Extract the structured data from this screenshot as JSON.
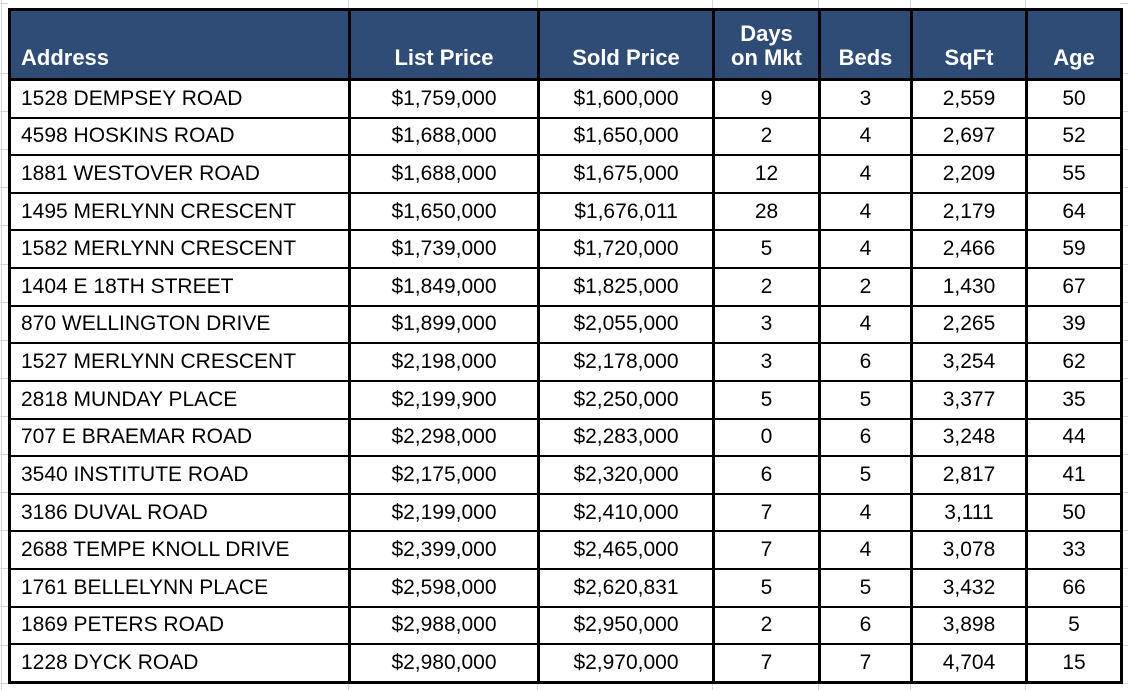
{
  "table": {
    "columns": [
      {
        "label": "Address",
        "align": "left"
      },
      {
        "label": "List Price",
        "align": "center"
      },
      {
        "label": "Sold Price",
        "align": "center"
      },
      {
        "label": "Days\non Mkt",
        "align": "center"
      },
      {
        "label": "Beds",
        "align": "center"
      },
      {
        "label": "SqFt",
        "align": "center"
      },
      {
        "label": "Age",
        "align": "center"
      }
    ],
    "rows": [
      [
        "1528 DEMPSEY ROAD",
        "$1,759,000",
        "$1,600,000",
        "9",
        "3",
        "2,559",
        "50"
      ],
      [
        "4598 HOSKINS ROAD",
        "$1,688,000",
        "$1,650,000",
        "2",
        "4",
        "2,697",
        "52"
      ],
      [
        "1881 WESTOVER ROAD",
        "$1,688,000",
        "$1,675,000",
        "12",
        "4",
        "2,209",
        "55"
      ],
      [
        "1495 MERLYNN CRESCENT",
        "$1,650,000",
        "$1,676,011",
        "28",
        "4",
        "2,179",
        "64"
      ],
      [
        "1582 MERLYNN CRESCENT",
        "$1,739,000",
        "$1,720,000",
        "5",
        "4",
        "2,466",
        "59"
      ],
      [
        "1404 E 18TH STREET",
        "$1,849,000",
        "$1,825,000",
        "2",
        "2",
        "1,430",
        "67"
      ],
      [
        "870 WELLINGTON DRIVE",
        "$1,899,000",
        "$2,055,000",
        "3",
        "4",
        "2,265",
        "39"
      ],
      [
        "1527 MERLYNN CRESCENT",
        "$2,198,000",
        "$2,178,000",
        "3",
        "6",
        "3,254",
        "62"
      ],
      [
        "2818 MUNDAY PLACE",
        "$2,199,900",
        "$2,250,000",
        "5",
        "5",
        "3,377",
        "35"
      ],
      [
        "707 E BRAEMAR ROAD",
        "$2,298,000",
        "$2,283,000",
        "0",
        "6",
        "3,248",
        "44"
      ],
      [
        "3540 INSTITUTE ROAD",
        "$2,175,000",
        "$2,320,000",
        "6",
        "5",
        "2,817",
        "41"
      ],
      [
        "3186 DUVAL ROAD",
        "$2,199,000",
        "$2,410,000",
        "7",
        "4",
        "3,111",
        "50"
      ],
      [
        "2688 TEMPE KNOLL DRIVE",
        "$2,399,000",
        "$2,465,000",
        "7",
        "4",
        "3,078",
        "33"
      ],
      [
        "1761 BELLELYNN PLACE",
        "$2,598,000",
        "$2,620,831",
        "5",
        "5",
        "3,432",
        "66"
      ],
      [
        "1869 PETERS ROAD",
        "$2,988,000",
        "$2,950,000",
        "2",
        "6",
        "3,898",
        "5"
      ],
      [
        "1228 DYCK ROAD",
        "$2,980,000",
        "$2,970,000",
        "7",
        "7",
        "4,704",
        "15"
      ]
    ]
  },
  "colors": {
    "header_bg": "#2e4c75",
    "header_text": "#ffffff",
    "cell_text": "#000000",
    "border": "#000000",
    "gridline": "#d7d7d7"
  }
}
